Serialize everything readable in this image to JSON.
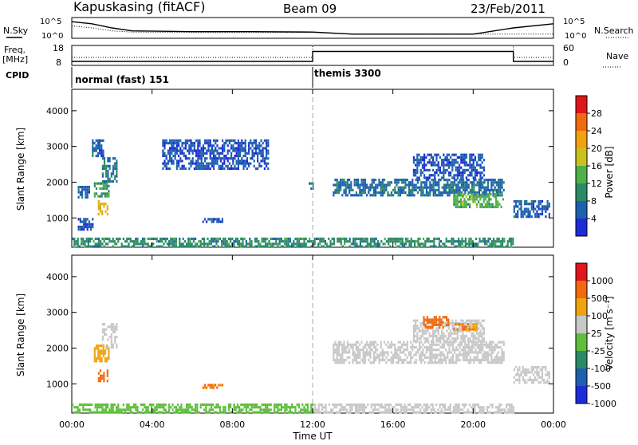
{
  "header": {
    "station": "Kapuskasing (fitACF)",
    "beam": "Beam 09",
    "date": "23/Feb/2011"
  },
  "top_panels": {
    "nsky_label": "N.Sky",
    "nsearch_label": "N.Search",
    "nsky_ticks": [
      "10^5",
      "10^0"
    ],
    "nsearch_ticks": [
      "10^5",
      "10^0"
    ],
    "freq_label_1": "Freq.",
    "freq_label_2": "[MHz]",
    "freq_ticks": [
      "18",
      "8"
    ],
    "nave_label": "Nave",
    "nave_ticks": [
      "60",
      "0"
    ],
    "cpid_label": "CPID",
    "cpid_modes": [
      {
        "label": "normal (fast) 151",
        "start_hour": 0
      },
      {
        "label": "themis 3300",
        "start_hour": 12
      }
    ]
  },
  "axes": {
    "ylabel": "Slant Range [km]",
    "xlabel": "Time UT",
    "y_ticks": [
      "1000",
      "2000",
      "3000",
      "4000"
    ],
    "x_ticks": [
      "00:00",
      "04:00",
      "08:00",
      "12:00",
      "16:00",
      "20:00",
      "00:00"
    ]
  },
  "colorbars": {
    "power": {
      "label": "Power [dB]",
      "ticks": [
        "4",
        "8",
        "12",
        "16",
        "20",
        "24",
        "28"
      ],
      "colors": [
        "#1e2bd9",
        "#1f5fb0",
        "#2b8a66",
        "#4fb04a",
        "#c9c21c",
        "#f0a30f",
        "#f26a0f",
        "#e0161a"
      ]
    },
    "velocity": {
      "label": "Velocity [m s⁻¹]",
      "ticks": [
        "1000",
        "500",
        "100",
        "25",
        "-25",
        "-100",
        "-500",
        "-1000"
      ],
      "colors": [
        "#1e2bd9",
        "#1f5fb0",
        "#2b8a66",
        "#5fbf3c",
        "#c8c8c8",
        "#f0a30f",
        "#f26a0f",
        "#e0161a"
      ]
    }
  },
  "chart_data": [
    {
      "type": "line",
      "title": "N.Sky / N.Search",
      "x_hours": [
        0,
        1,
        2,
        3,
        6,
        9,
        12,
        14,
        16,
        18,
        20,
        22,
        24
      ],
      "series": [
        {
          "name": "N.Sky",
          "values": [
            4.0,
            3.5,
            2.5,
            1.8,
            1.6,
            1.6,
            1.5,
            1.0,
            1.0,
            1.0,
            1.0,
            2.5,
            3.5
          ]
        },
        {
          "name": "N.Search",
          "values": [
            3.0,
            2.5,
            1.8,
            1.5,
            1.4,
            1.4,
            1.4,
            1.0,
            1.0,
            1.0,
            1.0,
            1.0,
            1.0
          ]
        }
      ],
      "ylim": [
        0,
        5
      ]
    },
    {
      "type": "line",
      "title": "Freq. / Nave",
      "x_hours": [
        0,
        12,
        12,
        22,
        22,
        24
      ],
      "series": [
        {
          "name": "Freq.",
          "values": [
            10,
            10,
            15,
            15,
            10,
            10
          ]
        },
        {
          "name": "Nave",
          "values": [
            12,
            12,
            20,
            20,
            12,
            12
          ]
        }
      ],
      "ylim": [
        8,
        18
      ]
    },
    {
      "type": "heatmap",
      "title": "Power [dB]",
      "x_range_hours": [
        0,
        24
      ],
      "y_range_km": [
        180,
        4600
      ],
      "patches": [
        {
          "t": [
            0.3,
            0.9
          ],
          "r": [
            1600,
            1900
          ],
          "v": 6
        },
        {
          "t": [
            0.3,
            1.0
          ],
          "r": [
            700,
            1000
          ],
          "v": 5
        },
        {
          "t": [
            1.1,
            1.8
          ],
          "r": [
            1600,
            2000
          ],
          "v": 12
        },
        {
          "t": [
            1.3,
            1.8
          ],
          "r": [
            1100,
            1500
          ],
          "v": 20
        },
        {
          "t": [
            1.5,
            2.2
          ],
          "r": [
            2000,
            2700
          ],
          "v": 8
        },
        {
          "t": [
            1.0,
            1.6
          ],
          "r": [
            2700,
            3200
          ],
          "v": 6
        },
        {
          "t": [
            4.5,
            9.8
          ],
          "r": [
            2400,
            3200
          ],
          "v": 5
        },
        {
          "t": [
            6.5,
            7.5
          ],
          "r": [
            900,
            1000
          ],
          "v": 6
        },
        {
          "t": [
            11.8,
            12.0
          ],
          "r": [
            1800,
            2000
          ],
          "v": 8
        },
        {
          "t": [
            13.0,
            21.5
          ],
          "r": [
            1600,
            2100
          ],
          "v": 7
        },
        {
          "t": [
            17.0,
            20.5
          ],
          "r": [
            2100,
            2800
          ],
          "v": 5
        },
        {
          "t": [
            19.0,
            21.5
          ],
          "r": [
            1300,
            1700
          ],
          "v": 14
        },
        {
          "t": [
            22.0,
            23.8
          ],
          "r": [
            1000,
            1500
          ],
          "v": 6
        },
        {
          "t": [
            0.0,
            22.0
          ],
          "r": [
            200,
            450
          ],
          "v": 10
        }
      ]
    },
    {
      "type": "heatmap",
      "title": "Velocity [m s⁻¹]",
      "x_range_hours": [
        0,
        24
      ],
      "y_range_km": [
        180,
        4600
      ],
      "patches": [
        {
          "t": [
            1.1,
            1.8
          ],
          "r": [
            1600,
            2100
          ],
          "v": -60
        },
        {
          "t": [
            1.3,
            1.8
          ],
          "r": [
            1100,
            1400
          ],
          "v": -300
        },
        {
          "t": [
            1.5,
            2.2
          ],
          "r": [
            2000,
            2700
          ],
          "v": 0
        },
        {
          "t": [
            6.5,
            7.5
          ],
          "r": [
            900,
            1000
          ],
          "v": -100
        },
        {
          "t": [
            13.0,
            21.5
          ],
          "r": [
            1600,
            2200
          ],
          "v": 0
        },
        {
          "t": [
            17.0,
            20.5
          ],
          "r": [
            2200,
            2800
          ],
          "v": 0
        },
        {
          "t": [
            17.5,
            18.8
          ],
          "r": [
            2600,
            2900
          ],
          "v": -200
        },
        {
          "t": [
            19.0,
            20.2
          ],
          "r": [
            2500,
            2700
          ],
          "v": -100
        },
        {
          "t": [
            22.0,
            23.8
          ],
          "r": [
            1000,
            1500
          ],
          "v": 0
        },
        {
          "t": [
            0.0,
            12.0
          ],
          "r": [
            200,
            450
          ],
          "v": 50
        },
        {
          "t": [
            12.0,
            22.0
          ],
          "r": [
            200,
            450
          ],
          "v": 0
        }
      ]
    }
  ]
}
